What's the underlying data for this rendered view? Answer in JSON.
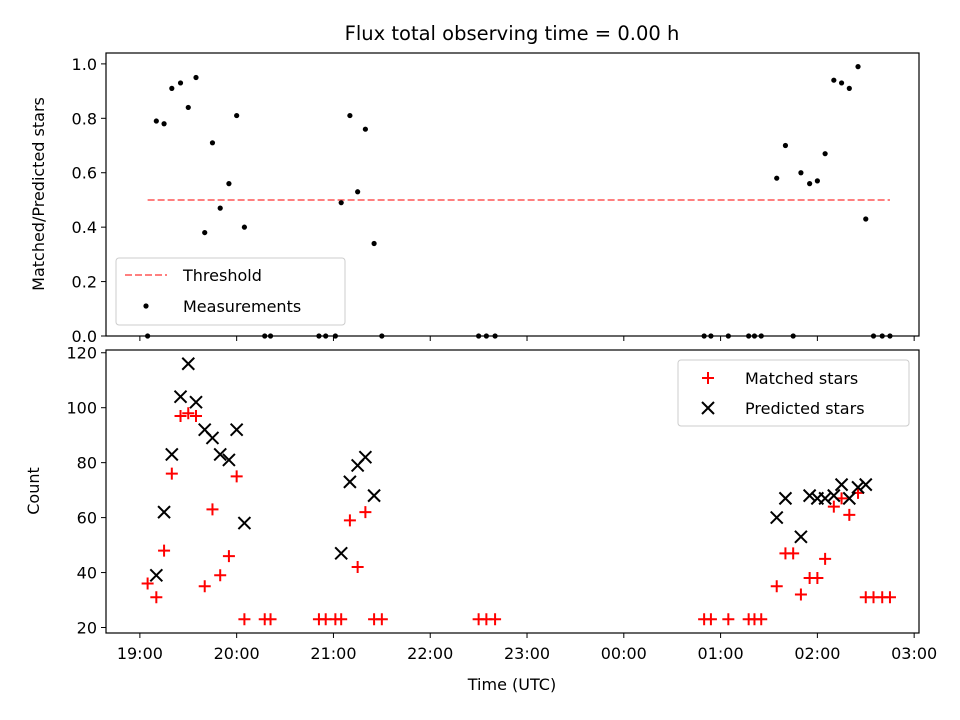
{
  "title": "Flux total observing time = 0.00 h",
  "chart_data": [
    {
      "type": "scatter",
      "ylabel": "Matched/Predicted stars",
      "xlim": [
        18.65,
        27.05
      ],
      "ylim": [
        0,
        1.04
      ],
      "yticks": [
        0.0,
        0.2,
        0.4,
        0.6,
        0.8,
        1.0
      ],
      "ytick_labels": [
        "0.0",
        "0.2",
        "0.4",
        "0.6",
        "0.8",
        "1.0"
      ],
      "threshold": {
        "value": 0.5,
        "x_start": 19.08,
        "x_end": 26.75,
        "color": "#ff7f7f"
      },
      "legend_position": "lower-left",
      "legend": [
        {
          "label": "Threshold",
          "style": "dashed-line",
          "color": "#ff7f7f"
        },
        {
          "label": "Measurements",
          "style": "dot",
          "color": "#000000"
        }
      ],
      "series": [
        {
          "name": "Measurements",
          "color": "#000000",
          "points": [
            [
              19.08,
              0.0
            ],
            [
              19.17,
              0.79
            ],
            [
              19.25,
              0.78
            ],
            [
              19.33,
              0.91
            ],
            [
              19.42,
              0.93
            ],
            [
              19.5,
              0.84
            ],
            [
              19.58,
              0.95
            ],
            [
              19.67,
              0.38
            ],
            [
              19.75,
              0.71
            ],
            [
              19.83,
              0.47
            ],
            [
              19.92,
              0.56
            ],
            [
              20.0,
              0.81
            ],
            [
              20.08,
              0.4
            ],
            [
              20.29,
              0.0
            ],
            [
              20.35,
              0.0
            ],
            [
              20.85,
              0.0
            ],
            [
              20.92,
              0.0
            ],
            [
              21.02,
              0.0
            ],
            [
              21.08,
              0.49
            ],
            [
              21.17,
              0.81
            ],
            [
              21.25,
              0.53
            ],
            [
              21.33,
              0.76
            ],
            [
              21.42,
              0.34
            ],
            [
              21.5,
              0.0
            ],
            [
              22.5,
              0.0
            ],
            [
              22.58,
              0.0
            ],
            [
              22.67,
              0.0
            ],
            [
              24.83,
              0.0
            ],
            [
              24.9,
              0.0
            ],
            [
              25.08,
              0.0
            ],
            [
              25.29,
              0.0
            ],
            [
              25.35,
              0.0
            ],
            [
              25.42,
              0.0
            ],
            [
              25.58,
              0.58
            ],
            [
              25.67,
              0.7
            ],
            [
              25.75,
              0.0
            ],
            [
              25.83,
              0.6
            ],
            [
              25.92,
              0.56
            ],
            [
              26.0,
              0.57
            ],
            [
              26.08,
              0.67
            ],
            [
              26.17,
              0.94
            ],
            [
              26.25,
              0.93
            ],
            [
              26.33,
              0.91
            ],
            [
              26.42,
              0.99
            ],
            [
              26.5,
              0.43
            ],
            [
              26.58,
              0.0
            ],
            [
              26.67,
              0.0
            ],
            [
              26.75,
              0.0
            ]
          ]
        }
      ]
    },
    {
      "type": "scatter",
      "xlabel": "Time (UTC)",
      "ylabel": "Count",
      "xlim": [
        18.65,
        27.05
      ],
      "ylim": [
        18,
        121
      ],
      "xticks": [
        19,
        20,
        21,
        22,
        23,
        24,
        25,
        26,
        27
      ],
      "xtick_labels": [
        "19:00",
        "20:00",
        "21:00",
        "22:00",
        "23:00",
        "00:00",
        "01:00",
        "02:00",
        "03:00"
      ],
      "yticks": [
        20,
        40,
        60,
        80,
        100,
        120
      ],
      "ytick_labels": [
        "20",
        "40",
        "60",
        "80",
        "100",
        "120"
      ],
      "legend_position": "upper-right",
      "legend": [
        {
          "label": "Matched stars",
          "style": "plus",
          "color": "#ff0000"
        },
        {
          "label": "Predicted stars",
          "style": "x",
          "color": "#000000"
        }
      ],
      "series": [
        {
          "name": "Matched stars",
          "marker": "plus",
          "color": "#ff0000",
          "points": [
            [
              19.08,
              36
            ],
            [
              19.17,
              31
            ],
            [
              19.25,
              48
            ],
            [
              19.33,
              76
            ],
            [
              19.42,
              97
            ],
            [
              19.5,
              98
            ],
            [
              19.58,
              97
            ],
            [
              19.67,
              35
            ],
            [
              19.75,
              63
            ],
            [
              19.83,
              39
            ],
            [
              19.92,
              46
            ],
            [
              20.0,
              75
            ],
            [
              20.08,
              23
            ],
            [
              20.29,
              23
            ],
            [
              20.35,
              23
            ],
            [
              20.85,
              23
            ],
            [
              20.92,
              23
            ],
            [
              21.02,
              23
            ],
            [
              21.08,
              23
            ],
            [
              21.17,
              59
            ],
            [
              21.25,
              42
            ],
            [
              21.33,
              62
            ],
            [
              21.42,
              23
            ],
            [
              21.5,
              23
            ],
            [
              22.5,
              23
            ],
            [
              22.58,
              23
            ],
            [
              22.67,
              23
            ],
            [
              24.83,
              23
            ],
            [
              24.9,
              23
            ],
            [
              25.08,
              23
            ],
            [
              25.29,
              23
            ],
            [
              25.35,
              23
            ],
            [
              25.42,
              23
            ],
            [
              25.58,
              35
            ],
            [
              25.67,
              47
            ],
            [
              25.75,
              47
            ],
            [
              25.83,
              32
            ],
            [
              25.92,
              38
            ],
            [
              26.0,
              38
            ],
            [
              26.08,
              45
            ],
            [
              26.17,
              64
            ],
            [
              26.25,
              67
            ],
            [
              26.33,
              61
            ],
            [
              26.42,
              69
            ],
            [
              26.5,
              31
            ],
            [
              26.58,
              31
            ],
            [
              26.67,
              31
            ],
            [
              26.75,
              31
            ]
          ]
        },
        {
          "name": "Predicted stars",
          "marker": "x",
          "color": "#000000",
          "points": [
            [
              19.17,
              39
            ],
            [
              19.25,
              62
            ],
            [
              19.33,
              83
            ],
            [
              19.42,
              104
            ],
            [
              19.5,
              116
            ],
            [
              19.58,
              102
            ],
            [
              19.67,
              92
            ],
            [
              19.75,
              89
            ],
            [
              19.83,
              83
            ],
            [
              19.92,
              81
            ],
            [
              20.0,
              92
            ],
            [
              20.08,
              58
            ],
            [
              21.08,
              47
            ],
            [
              21.17,
              73
            ],
            [
              21.25,
              79
            ],
            [
              21.33,
              82
            ],
            [
              21.42,
              68
            ],
            [
              25.58,
              60
            ],
            [
              25.67,
              67
            ],
            [
              25.83,
              53
            ],
            [
              25.92,
              68
            ],
            [
              26.0,
              67
            ],
            [
              26.08,
              67
            ],
            [
              26.17,
              68
            ],
            [
              26.25,
              72
            ],
            [
              26.33,
              67
            ],
            [
              26.42,
              71
            ],
            [
              26.5,
              72
            ]
          ]
        }
      ]
    }
  ]
}
